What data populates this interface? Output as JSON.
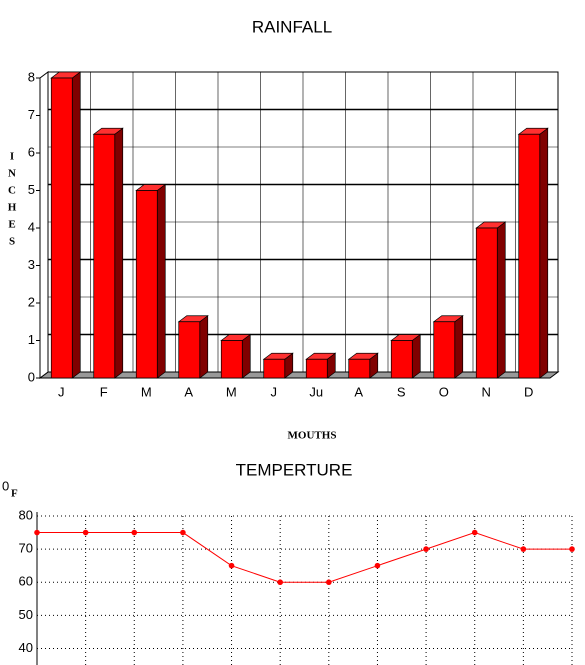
{
  "charts": [
    {
      "type": "bar3d",
      "title": "RAINFALL",
      "y_label": [
        "I",
        "N",
        "C",
        "H",
        "E",
        "S"
      ],
      "x_label": "MOUTHS",
      "categories": [
        "J",
        "F",
        "M",
        "A",
        "M",
        "J",
        "Ju",
        "A",
        "S",
        "O",
        "N",
        "D"
      ],
      "values": [
        8,
        6.5,
        5,
        1.5,
        1,
        0.5,
        0.5,
        0.5,
        1,
        1.5,
        4,
        6.5
      ],
      "color": "#ff0000",
      "ylim": [
        0,
        8
      ],
      "yticks": [
        0,
        1,
        2,
        3,
        4,
        5,
        6,
        7,
        8
      ],
      "grid": true
    },
    {
      "type": "line",
      "title": "TEMPERTURE",
      "y_label": {
        "superscript": "0",
        "text": "F"
      },
      "categories": [
        null,
        null,
        null,
        null,
        null,
        null,
        null,
        null,
        null,
        null,
        null,
        null
      ],
      "values": [
        75,
        75,
        75,
        75,
        65,
        60,
        60,
        65,
        70,
        75,
        70,
        70
      ],
      "color": "#ff0000",
      "ylim": [
        35,
        80
      ],
      "yticks": [
        40,
        50,
        60,
        70,
        80
      ],
      "grid": true
    }
  ]
}
